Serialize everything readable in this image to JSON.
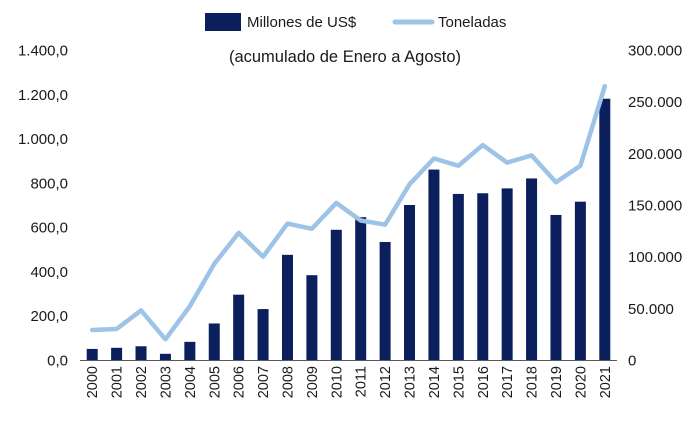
{
  "chart_data": {
    "type": "bar-line-combo",
    "subtitle": "(acumulado de Enero a Agosto)",
    "legend_position": "top-center",
    "grid": false,
    "categories": [
      "2000",
      "2001",
      "2002",
      "2003",
      "2004",
      "2005",
      "2006",
      "2007",
      "2008",
      "2009",
      "2010",
      "2011",
      "2012",
      "2013",
      "2014",
      "2015",
      "2016",
      "2017",
      "2018",
      "2019",
      "2020",
      "2021"
    ],
    "series": [
      {
        "name": "Millones de US$",
        "type": "bar",
        "axis": "left",
        "color": "#0b1f5c",
        "values": [
          50,
          55,
          62,
          28,
          82,
          165,
          295,
          230,
          475,
          383,
          588,
          645,
          533,
          700,
          860,
          750,
          753,
          775,
          820,
          655,
          715,
          1180
        ]
      },
      {
        "name": "Toneladas",
        "type": "line",
        "axis": "right",
        "color": "#9dc3e6",
        "values": [
          29000,
          30000,
          48000,
          20000,
          52000,
          93000,
          123000,
          100000,
          132000,
          127000,
          152000,
          135000,
          131000,
          170000,
          195000,
          188000,
          208000,
          191000,
          198000,
          172000,
          188000,
          265000
        ]
      }
    ],
    "left_axis": {
      "ylim": [
        0,
        1400
      ],
      "ticks": [
        0,
        200,
        400,
        600,
        800,
        1000,
        1200,
        1400
      ],
      "tick_labels": [
        "0,0",
        "200,0",
        "400,0",
        "600,0",
        "800,0",
        "1.000,0",
        "1.200,0",
        "1.400,0"
      ]
    },
    "right_axis": {
      "ylim": [
        0,
        300000
      ],
      "ticks": [
        0,
        50000,
        100000,
        150000,
        200000,
        250000,
        300000
      ],
      "tick_labels": [
        "0",
        "50.000",
        "100.000",
        "150.000",
        "200.000",
        "250.000",
        "300.000"
      ]
    }
  }
}
